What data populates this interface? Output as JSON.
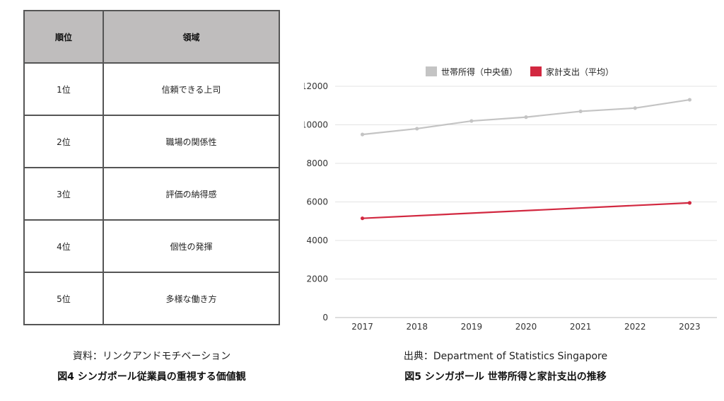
{
  "table": {
    "headers": [
      "順位",
      "領域"
    ],
    "rows": [
      [
        "1位",
        "信頼できる上司"
      ],
      [
        "2位",
        "職場の関係性"
      ],
      [
        "3位",
        "評価の納得感"
      ],
      [
        "4位",
        "個性の発揮"
      ],
      [
        "5位",
        "多様な働き方"
      ]
    ],
    "source": "資料：リンクアンドモチベーション",
    "title": "図4 シンガポール従業員の重視する価値観"
  },
  "chart": {
    "source": "出典：Department of Statistics Singapore",
    "title": "図5 シンガポール 世帯所得と家計支出の推移"
  },
  "chart_data": {
    "type": "line",
    "x": [
      "2017",
      "2018",
      "2019",
      "2020",
      "2021",
      "2022",
      "2023"
    ],
    "series": [
      {
        "name": "世帯所得（中央値）",
        "color": "#c4c4c4",
        "values": [
          9500,
          9800,
          10200,
          10400,
          10700,
          10870,
          11300
        ]
      },
      {
        "name": "家計支出（平均）",
        "color": "#d22840",
        "values": [
          5150,
          null,
          null,
          null,
          null,
          null,
          5950
        ]
      }
    ],
    "ylim": [
      0,
      12000
    ],
    "yticks": [
      0,
      2000,
      4000,
      6000,
      8000,
      10000,
      12000
    ],
    "grid": true,
    "legend_position": "top"
  }
}
